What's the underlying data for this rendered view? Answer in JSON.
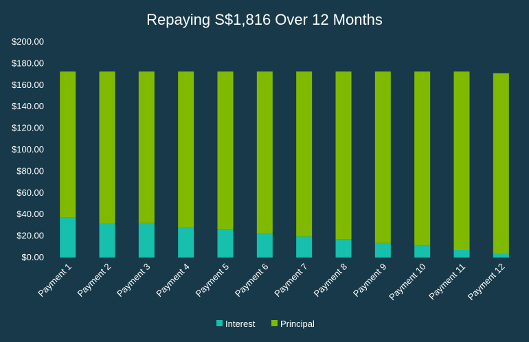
{
  "chart_data": {
    "type": "bar",
    "stacked": true,
    "title": "Repaying S$1,816 Over 12 Months",
    "xlabel": "",
    "ylabel": "",
    "ylim": [
      0,
      200
    ],
    "y_ticks": [
      "$0.00",
      "$20.00",
      "$40.00",
      "$60.00",
      "$80.00",
      "$100.00",
      "$120.00",
      "$140.00",
      "$160.00",
      "$180.00",
      "$200.00"
    ],
    "categories": [
      "Payment 1",
      "Payment 2",
      "Payment 3",
      "Payment 4",
      "Payment 5",
      "Payment 6",
      "Payment 7",
      "Payment 8",
      "Payment 9",
      "Payment 10",
      "Payment 11",
      "Payment 12"
    ],
    "series": [
      {
        "name": "Interest",
        "color": "#16c0ad",
        "values": [
          37.5,
          31.5,
          32.0,
          28.0,
          26.0,
          22.5,
          19.5,
          17.0,
          13.5,
          11.0,
          7.0,
          3.5
        ]
      },
      {
        "name": "Principal",
        "color": "#7fba00",
        "values": [
          135.0,
          141.0,
          140.5,
          144.5,
          146.5,
          150.0,
          153.0,
          155.5,
          159.0,
          161.5,
          165.5,
          167.5
        ]
      }
    ],
    "grid": false,
    "legend_position": "bottom",
    "background": "#17394a"
  }
}
